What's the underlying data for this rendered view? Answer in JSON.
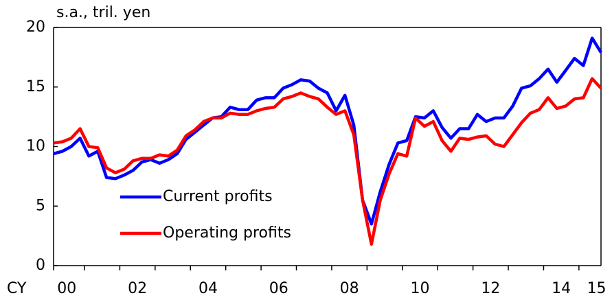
{
  "chart_data": {
    "type": "line",
    "title": "s.a., tril. yen",
    "xlabel": "CY",
    "categories": [
      null,
      "00",
      null,
      null,
      null,
      null,
      null,
      null,
      null,
      "02",
      null,
      null,
      null,
      null,
      null,
      null,
      null,
      "04",
      null,
      null,
      null,
      null,
      null,
      null,
      null,
      "06",
      null,
      null,
      null,
      null,
      null,
      null,
      null,
      "08",
      null,
      null,
      null,
      null,
      null,
      null,
      null,
      "10",
      null,
      null,
      null,
      null,
      null,
      null,
      null,
      "12",
      null,
      null,
      null,
      null,
      null,
      null,
      null,
      "14",
      null,
      null,
      null,
      "15",
      null
    ],
    "series": [
      {
        "name": "Current profits",
        "color": "#0000ff",
        "values": [
          9.4,
          9.6,
          10.0,
          10.7,
          9.2,
          9.6,
          7.4,
          7.3,
          7.6,
          8.0,
          8.7,
          8.9,
          8.6,
          8.9,
          9.4,
          10.6,
          11.2,
          11.8,
          12.4,
          12.5,
          13.3,
          13.1,
          13.1,
          13.9,
          14.1,
          14.1,
          14.9,
          15.2,
          15.6,
          15.5,
          14.9,
          14.5,
          13.0,
          14.3,
          11.8,
          5.5,
          3.5,
          6.2,
          8.5,
          10.3,
          10.5,
          12.5,
          12.4,
          13.0,
          11.6,
          10.7,
          11.5,
          11.5,
          12.7,
          12.1,
          12.4,
          12.4,
          13.4,
          14.9,
          15.1,
          15.7,
          16.5,
          15.4,
          16.4,
          17.4,
          16.8,
          19.1,
          17.9
        ]
      },
      {
        "name": "Operating profits",
        "color": "#ff0000",
        "values": [
          10.3,
          10.4,
          10.7,
          11.5,
          10.0,
          9.9,
          8.2,
          7.8,
          8.1,
          8.8,
          9.0,
          9.0,
          9.3,
          9.2,
          9.7,
          10.9,
          11.4,
          12.1,
          12.4,
          12.4,
          12.8,
          12.7,
          12.7,
          13.0,
          13.2,
          13.3,
          14.0,
          14.2,
          14.5,
          14.2,
          14.0,
          13.3,
          12.7,
          13.0,
          11.0,
          5.5,
          1.8,
          5.5,
          7.7,
          9.4,
          9.2,
          12.4,
          11.7,
          12.1,
          10.5,
          9.6,
          10.7,
          10.6,
          10.8,
          10.9,
          10.2,
          10.0,
          11.0,
          12.0,
          12.8,
          13.1,
          14.1,
          13.2,
          13.4,
          14.0,
          14.1,
          15.7,
          14.9
        ]
      }
    ],
    "ylim": [
      0,
      20
    ],
    "yticks": [
      0,
      5,
      10,
      15,
      20
    ],
    "legend": "lower-left"
  }
}
